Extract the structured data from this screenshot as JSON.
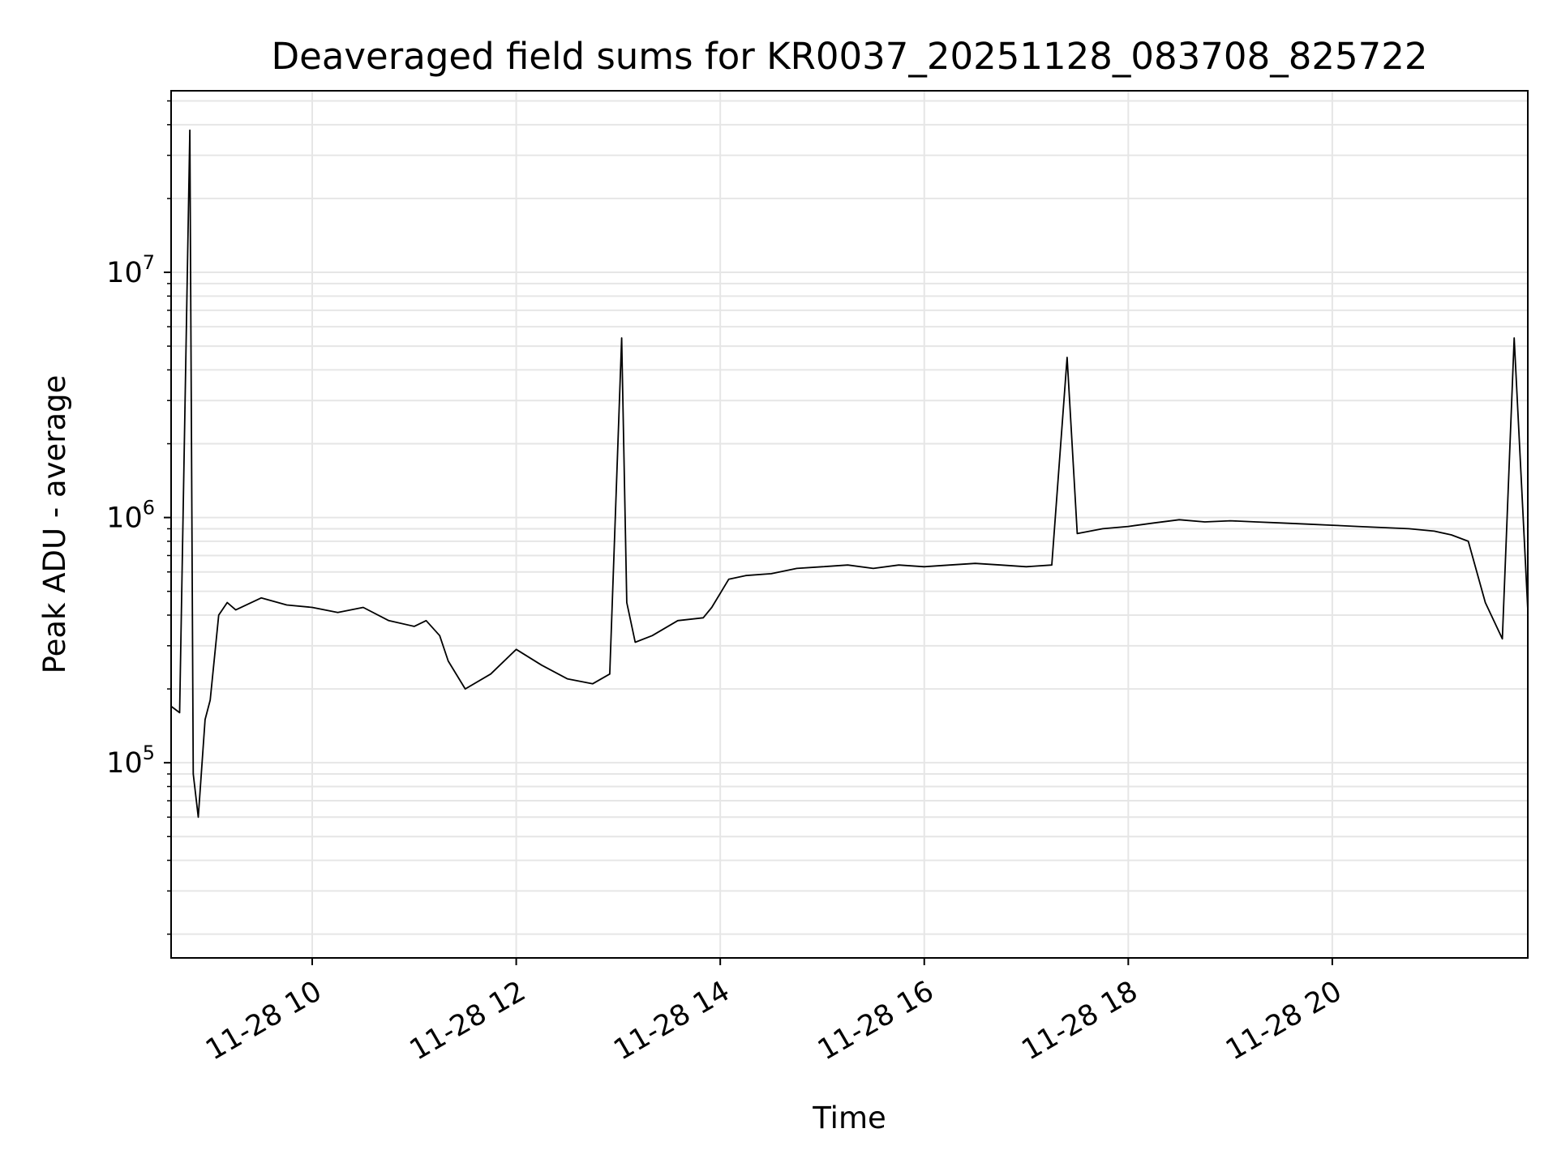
{
  "chart_data": {
    "type": "line",
    "title": "Deaveraged field sums for KR0037_20251128_083708_825722",
    "xlabel": "Time",
    "ylabel": "Peak ADU - average",
    "yscale": "log",
    "grid": true,
    "legend": "none",
    "line_color": "#000000",
    "grid_color": "#e6e6e6",
    "xlim": [
      "2025-11-28 08:37",
      "2025-11-28 21:55"
    ],
    "ylim": [
      16000,
      55000000
    ],
    "x_ticks": [
      {
        "value": "2025-11-28 10:00",
        "label": "11-28 10"
      },
      {
        "value": "2025-11-28 12:00",
        "label": "11-28 12"
      },
      {
        "value": "2025-11-28 14:00",
        "label": "11-28 14"
      },
      {
        "value": "2025-11-28 16:00",
        "label": "11-28 16"
      },
      {
        "value": "2025-11-28 18:00",
        "label": "11-28 18"
      },
      {
        "value": "2025-11-28 20:00",
        "label": "11-28 20"
      }
    ],
    "y_ticks": [
      {
        "value": 100000,
        "base": "10",
        "exp": "5"
      },
      {
        "value": 1000000,
        "base": "10",
        "exp": "6"
      },
      {
        "value": 10000000,
        "base": "10",
        "exp": "7"
      }
    ],
    "series": [
      {
        "x": [
          "2025-11-28 08:37",
          "2025-11-28 08:42",
          "2025-11-28 08:48",
          "2025-11-28 08:50",
          "2025-11-28 08:53",
          "2025-11-28 08:57",
          "2025-11-28 09:00",
          "2025-11-28 09:05",
          "2025-11-28 09:10",
          "2025-11-28 09:15",
          "2025-11-28 09:30",
          "2025-11-28 09:45",
          "2025-11-28 10:00",
          "2025-11-28 10:15",
          "2025-11-28 10:30",
          "2025-11-28 10:45",
          "2025-11-28 11:00",
          "2025-11-28 11:07",
          "2025-11-28 11:15",
          "2025-11-28 11:20",
          "2025-11-28 11:30",
          "2025-11-28 11:45",
          "2025-11-28 12:00",
          "2025-11-28 12:15",
          "2025-11-28 12:30",
          "2025-11-28 12:45",
          "2025-11-28 12:55",
          "2025-11-28 13:02",
          "2025-11-28 13:05",
          "2025-11-28 13:10",
          "2025-11-28 13:20",
          "2025-11-28 13:35",
          "2025-11-28 13:50",
          "2025-11-28 13:55",
          "2025-11-28 14:05",
          "2025-11-28 14:15",
          "2025-11-28 14:30",
          "2025-11-28 14:45",
          "2025-11-28 15:00",
          "2025-11-28 15:15",
          "2025-11-28 15:30",
          "2025-11-28 15:45",
          "2025-11-28 16:00",
          "2025-11-28 16:15",
          "2025-11-28 16:30",
          "2025-11-28 16:45",
          "2025-11-28 17:00",
          "2025-11-28 17:15",
          "2025-11-28 17:24",
          "2025-11-28 17:30",
          "2025-11-28 17:45",
          "2025-11-28 18:00",
          "2025-11-28 18:15",
          "2025-11-28 18:30",
          "2025-11-28 18:45",
          "2025-11-28 19:00",
          "2025-11-28 19:15",
          "2025-11-28 19:30",
          "2025-11-28 19:45",
          "2025-11-28 20:00",
          "2025-11-28 20:15",
          "2025-11-28 20:30",
          "2025-11-28 20:45",
          "2025-11-28 21:00",
          "2025-11-28 21:10",
          "2025-11-28 21:20",
          "2025-11-28 21:30",
          "2025-11-28 21:40",
          "2025-11-28 21:47",
          "2025-11-28 21:55"
        ],
        "y": [
          170000,
          160000,
          38000000,
          90000,
          60000,
          150000,
          180000,
          400000,
          450000,
          420000,
          470000,
          440000,
          430000,
          410000,
          430000,
          380000,
          360000,
          380000,
          330000,
          260000,
          200000,
          230000,
          290000,
          250000,
          220000,
          210000,
          230000,
          5400000,
          450000,
          310000,
          330000,
          380000,
          390000,
          430000,
          560000,
          580000,
          590000,
          620000,
          630000,
          640000,
          620000,
          640000,
          630000,
          640000,
          650000,
          640000,
          630000,
          640000,
          4500000,
          860000,
          900000,
          920000,
          950000,
          980000,
          960000,
          970000,
          960000,
          950000,
          940000,
          930000,
          920000,
          910000,
          900000,
          880000,
          850000,
          800000,
          450000,
          320000,
          5400000,
          420000
        ]
      }
    ]
  }
}
